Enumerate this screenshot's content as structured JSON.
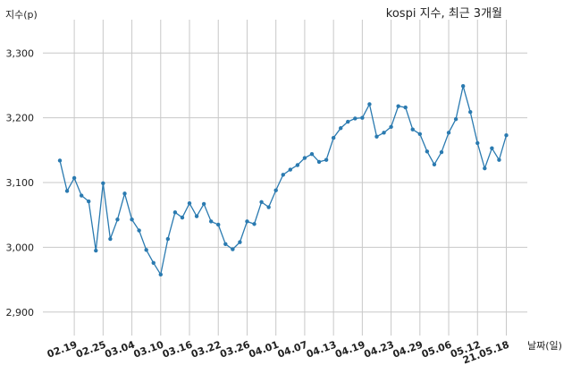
{
  "chart_data": {
    "type": "line",
    "title": "kospi 지수, 최근 3개월",
    "ylabel": "지수(p)",
    "xlabel": "날짜(일)",
    "ylim": [
      2850,
      3350
    ],
    "yticks": [
      "2,900",
      "3,000",
      "3,100",
      "3,200",
      "3,300"
    ],
    "ytick_values": [
      2900,
      3000,
      3100,
      3200,
      3300
    ],
    "xtick_labels": [
      "02.19",
      "02.25",
      "03.04",
      "03.10",
      "03.16",
      "03.22",
      "03.26",
      "04.01",
      "04.07",
      "04.13",
      "04.19",
      "04.23",
      "04.29",
      "05.06",
      "05.12",
      "21.05.18"
    ],
    "xtick_index": [
      2,
      6,
      10,
      14,
      18,
      22,
      26,
      30,
      34,
      38,
      42,
      46,
      50,
      54,
      58,
      62
    ],
    "grid": true,
    "color": "#2a7ab0",
    "series": [
      {
        "values": [
          3134,
          3087,
          3107,
          3080,
          3071,
          2995,
          3099,
          3013,
          3043,
          3083,
          3043,
          3026,
          2996,
          2976,
          2958,
          3013,
          3054,
          3046,
          3068,
          3048,
          3067,
          3040,
          3035,
          3005,
          2997,
          3008,
          3040,
          3036,
          3070,
          3062,
          3088,
          3112,
          3120,
          3127,
          3138,
          3144,
          3132,
          3135,
          3169,
          3184,
          3194,
          3199,
          3200,
          3221,
          3171,
          3177,
          3186,
          3218,
          3216,
          3182,
          3175,
          3148,
          3128,
          3147,
          3177,
          3198,
          3249,
          3209,
          3161,
          3122,
          3153,
          3135,
          3173
        ]
      }
    ]
  }
}
